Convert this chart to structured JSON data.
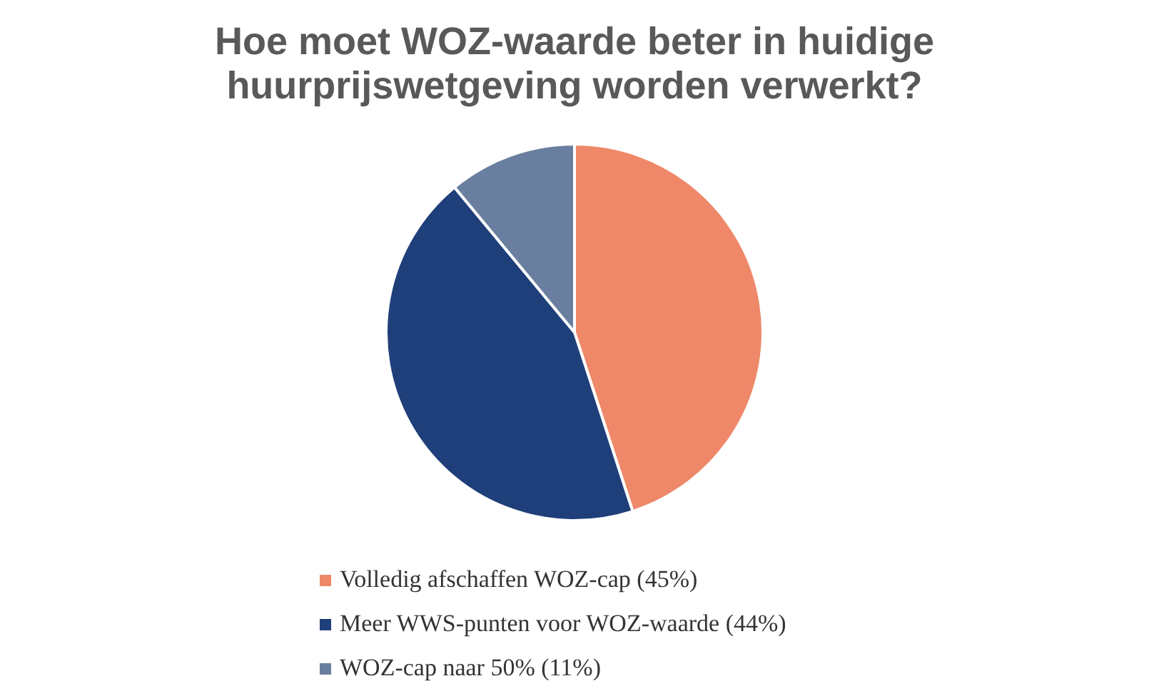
{
  "chart_data": {
    "type": "pie",
    "title": "Hoe moet WOZ-waarde beter in huidige huurprijswetgeving worden verwerkt?",
    "categories": [
      "Volledig afschaffen WOZ-cap (45%)",
      "Meer WWS-punten voor WOZ-waarde (44%)",
      "WOZ-cap naar 50% (11%)"
    ],
    "values": [
      45,
      44,
      11
    ],
    "colors": [
      "#ee8868",
      "#1f3f7a",
      "#6a7f9f"
    ],
    "legend": "bottom"
  }
}
